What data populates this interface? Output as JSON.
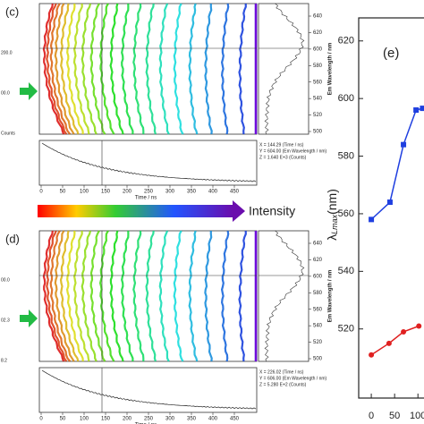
{
  "panel_c": {
    "label": "(c)",
    "time_ticks": [
      0,
      50,
      100,
      150,
      200,
      250,
      300,
      350,
      400,
      450
    ],
    "time_label": "Time / ns",
    "wl_ticks": [
      500,
      520,
      540,
      560,
      580,
      600,
      620,
      640
    ],
    "wl_label": "Em Wavelength / nm",
    "left_labels": [
      "200.0",
      "00.0",
      "Counts"
    ],
    "readout": [
      "X = 144.29 (Time / ns)",
      "Y = 604.00 (Em Wavelength / nm)",
      "Z = 1.640 E+3 (Counts)"
    ]
  },
  "panel_d": {
    "label": "(d)",
    "time_ticks": [
      0,
      50,
      100,
      150,
      200,
      250,
      300,
      350,
      400,
      450
    ],
    "time_label": "Time / ns",
    "wl_ticks": [
      500,
      520,
      540,
      560,
      580,
      600,
      620,
      640
    ],
    "wl_label": "Em Wavelength / nm",
    "left_labels": [
      "00.0",
      "02.3",
      "8.2"
    ],
    "readout": [
      "X = 226.02 (Time / ns)",
      "Y = 606.00 (Em Wavelength / nm)",
      "Z = 5.280 E+2 (Counts)"
    ]
  },
  "intensity_label": "Intensity",
  "chart_data": {
    "type": "line",
    "label": "(e)",
    "ylabel": {
      "symbol": "λ",
      "subscript": "Lmax",
      "unit": "(nm)"
    },
    "xlim": [
      -27,
      113
    ],
    "ylim": [
      496,
      628
    ],
    "xticks": [
      0,
      50,
      100
    ],
    "yticks": [
      520,
      540,
      560,
      580,
      600,
      620
    ],
    "series": [
      {
        "name": "blue",
        "color": "#1f3fe0",
        "marker": "square",
        "x": [
          0,
          40,
          69,
          96,
          110
        ],
        "values": [
          558,
          564,
          584,
          596,
          596.6
        ]
      },
      {
        "name": "red",
        "color": "#e02020",
        "marker": "circle",
        "x": [
          0,
          38,
          69,
          102
        ],
        "values": [
          511,
          515,
          519,
          521
        ]
      }
    ]
  }
}
